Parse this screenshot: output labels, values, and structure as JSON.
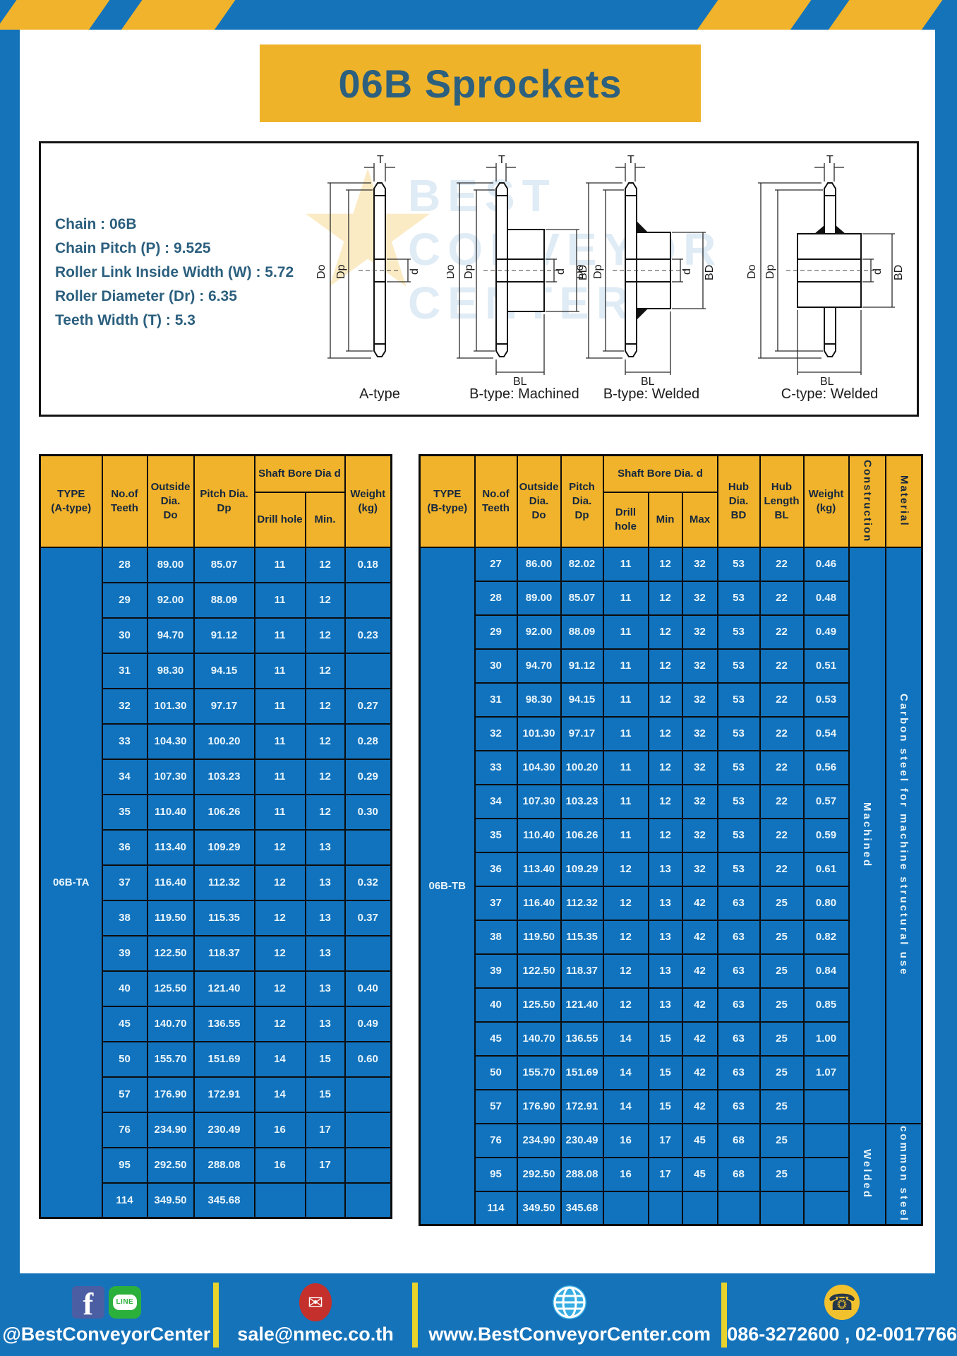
{
  "page": {
    "title": "06B Sprockets"
  },
  "specs": {
    "lines": [
      "Chain : 06B",
      "Chain Pitch (P) : 9.525",
      "Roller Link Inside Width (W) : 5.72",
      "Roller Diameter (Dr) : 6.35",
      "Teeth Width (T) : 5.3"
    ]
  },
  "diagrams": {
    "watermark": "BEST\nCONVEYOR\nCENTER",
    "watermark_star": "★",
    "labels": [
      "A-type",
      "B-type: Machined",
      "B-type: Welded",
      "C-type: Welded"
    ],
    "dims": {
      "t": "T",
      "outside": "Do",
      "pitch": "Dp",
      "bore": "d",
      "hub_dia": "BD",
      "hub_len": "BL"
    }
  },
  "left_table": {
    "type_label": "06B-TA",
    "headers": {
      "type": "TYPE\n(A-type)",
      "teeth": "No.of\nTeeth",
      "outside": "Outside\nDia.\nDo",
      "pitch": "Pitch Dia.\nDp",
      "shaft_group": "Shaft Bore Dia d",
      "drill": "Drill hole",
      "min": "Min.",
      "weight": "Weight\n(kg)"
    },
    "rows": [
      [
        "28",
        "89.00",
        "85.07",
        "11",
        "12",
        "0.18"
      ],
      [
        "29",
        "92.00",
        "88.09",
        "11",
        "12",
        ""
      ],
      [
        "30",
        "94.70",
        "91.12",
        "11",
        "12",
        "0.23"
      ],
      [
        "31",
        "98.30",
        "94.15",
        "11",
        "12",
        ""
      ],
      [
        "32",
        "101.30",
        "97.17",
        "11",
        "12",
        "0.27"
      ],
      [
        "33",
        "104.30",
        "100.20",
        "11",
        "12",
        "0.28"
      ],
      [
        "34",
        "107.30",
        "103.23",
        "11",
        "12",
        "0.29"
      ],
      [
        "35",
        "110.40",
        "106.26",
        "11",
        "12",
        "0.30"
      ],
      [
        "36",
        "113.40",
        "109.29",
        "12",
        "13",
        ""
      ],
      [
        "37",
        "116.40",
        "112.32",
        "12",
        "13",
        "0.32"
      ],
      [
        "38",
        "119.50",
        "115.35",
        "12",
        "13",
        "0.37"
      ],
      [
        "39",
        "122.50",
        "118.37",
        "12",
        "13",
        ""
      ],
      [
        "40",
        "125.50",
        "121.40",
        "12",
        "13",
        "0.40"
      ],
      [
        "45",
        "140.70",
        "136.55",
        "12",
        "13",
        "0.49"
      ],
      [
        "50",
        "155.70",
        "151.69",
        "14",
        "15",
        "0.60"
      ],
      [
        "57",
        "176.90",
        "172.91",
        "14",
        "15",
        ""
      ],
      [
        "76",
        "234.90",
        "230.49",
        "16",
        "17",
        ""
      ],
      [
        "95",
        "292.50",
        "288.08",
        "16",
        "17",
        ""
      ],
      [
        "114",
        "349.50",
        "345.68",
        "",
        "",
        ""
      ]
    ]
  },
  "right_table": {
    "type_label": "06B-TB",
    "headers": {
      "type": "TYPE\n(B-type)",
      "teeth": "No.of\nTeeth",
      "outside": "Outside\nDia.\nDo",
      "pitch": "Pitch\nDia.\nDp",
      "shaft_group": "Shaft Bore Dia. d",
      "drill": "Drill hole",
      "min": "Min",
      "max": "Max",
      "hub_dia": "Hub\nDia.\nBD",
      "hub_len": "Hub\nLength\nBL",
      "weight": "Weight\n(kg)",
      "construction": "Construction",
      "material": "Material"
    },
    "rows": [
      [
        "27",
        "86.00",
        "82.02",
        "11",
        "12",
        "32",
        "53",
        "22",
        "0.46"
      ],
      [
        "28",
        "89.00",
        "85.07",
        "11",
        "12",
        "32",
        "53",
        "22",
        "0.48"
      ],
      [
        "29",
        "92.00",
        "88.09",
        "11",
        "12",
        "32",
        "53",
        "22",
        "0.49"
      ],
      [
        "30",
        "94.70",
        "91.12",
        "11",
        "12",
        "32",
        "53",
        "22",
        "0.51"
      ],
      [
        "31",
        "98.30",
        "94.15",
        "11",
        "12",
        "32",
        "53",
        "22",
        "0.53"
      ],
      [
        "32",
        "101.30",
        "97.17",
        "11",
        "12",
        "32",
        "53",
        "22",
        "0.54"
      ],
      [
        "33",
        "104.30",
        "100.20",
        "11",
        "12",
        "32",
        "53",
        "22",
        "0.56"
      ],
      [
        "34",
        "107.30",
        "103.23",
        "11",
        "12",
        "32",
        "53",
        "22",
        "0.57"
      ],
      [
        "35",
        "110.40",
        "106.26",
        "11",
        "12",
        "32",
        "53",
        "22",
        "0.59"
      ],
      [
        "36",
        "113.40",
        "109.29",
        "12",
        "13",
        "32",
        "53",
        "22",
        "0.61"
      ],
      [
        "37",
        "116.40",
        "112.32",
        "12",
        "13",
        "42",
        "63",
        "25",
        "0.80"
      ],
      [
        "38",
        "119.50",
        "115.35",
        "12",
        "13",
        "42",
        "63",
        "25",
        "0.82"
      ],
      [
        "39",
        "122.50",
        "118.37",
        "12",
        "13",
        "42",
        "63",
        "25",
        "0.84"
      ],
      [
        "40",
        "125.50",
        "121.40",
        "12",
        "13",
        "42",
        "63",
        "25",
        "0.85"
      ],
      [
        "45",
        "140.70",
        "136.55",
        "14",
        "15",
        "42",
        "63",
        "25",
        "1.00"
      ],
      [
        "50",
        "155.70",
        "151.69",
        "14",
        "15",
        "42",
        "63",
        "25",
        "1.07"
      ],
      [
        "57",
        "176.90",
        "172.91",
        "14",
        "15",
        "42",
        "63",
        "25",
        ""
      ],
      [
        "76",
        "234.90",
        "230.49",
        "16",
        "17",
        "45",
        "68",
        "25",
        ""
      ],
      [
        "95",
        "292.50",
        "288.08",
        "16",
        "17",
        "45",
        "68",
        "25",
        ""
      ],
      [
        "114",
        "349.50",
        "345.68",
        "",
        "",
        "",
        "",
        "",
        ""
      ]
    ],
    "vcols": [
      {
        "name": "construction",
        "segments": [
          {
            "start": 0,
            "span": 17,
            "label": "Machined"
          },
          {
            "start": 17,
            "span": 3,
            "label": "Welded"
          }
        ]
      },
      {
        "name": "material",
        "segments": [
          {
            "start": 0,
            "span": 17,
            "label": "Carbon steel for machine structural use"
          },
          {
            "start": 17,
            "span": 3,
            "label": "common steel"
          }
        ]
      }
    ]
  },
  "footer": {
    "social": {
      "label": "@BestConveyorCenter"
    },
    "email": {
      "label": "sale@nmec.co.th"
    },
    "website": {
      "label": "www.BestConveyorCenter.com"
    },
    "phone": {
      "label": "086-3272600 , 02-0017766"
    },
    "icons": {
      "facebook_f": "f",
      "line_badge": "LINE",
      "envelope": "✉",
      "phone_glyph": "☎"
    }
  },
  "colors": {
    "frame_blue": "#1573ba",
    "cell_blue": "#1173bd",
    "accent_yellow": "#f0b32b",
    "divider_yellow": "#e8d32c",
    "title_text": "#2d607e",
    "facebook_blue": "#4b5ea4",
    "line_green": "#2cb03c",
    "email_red": "#c4302b",
    "globe_blue": "#35ace2",
    "phone_yellow": "#f2c12e"
  }
}
